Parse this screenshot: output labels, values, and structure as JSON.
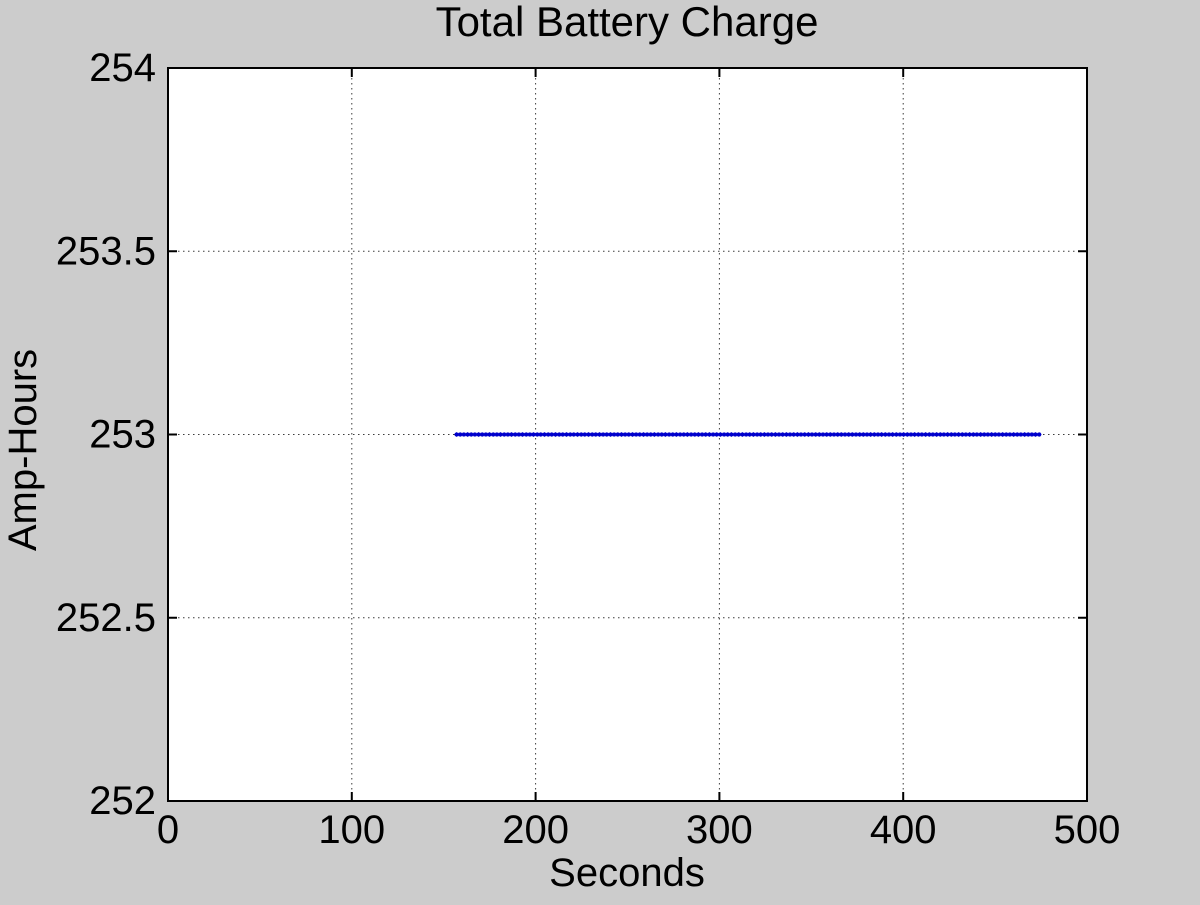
{
  "chart_data": {
    "type": "scatter",
    "title": "Total Battery Charge",
    "xlabel": "Seconds",
    "ylabel": "Amp-Hours",
    "xlim": [
      0,
      500
    ],
    "ylim": [
      252,
      254
    ],
    "xticks": [
      0,
      100,
      200,
      300,
      400,
      500
    ],
    "yticks": [
      252,
      252.5,
      253,
      253.5,
      254
    ],
    "grid": true,
    "grid_style": "dotted",
    "series": [
      {
        "name": "total-battery-charge",
        "marker": "*",
        "color": "#0000CC",
        "y_constant": 253,
        "x_start": 157,
        "x_end": 474,
        "n_points": 160
      }
    ]
  },
  "colors": {
    "figure_bg": "#CCCCCC",
    "plot_bg": "#FFFFFF",
    "axis": "#000000",
    "grid": "#3C3C3C",
    "text": "#000000"
  }
}
